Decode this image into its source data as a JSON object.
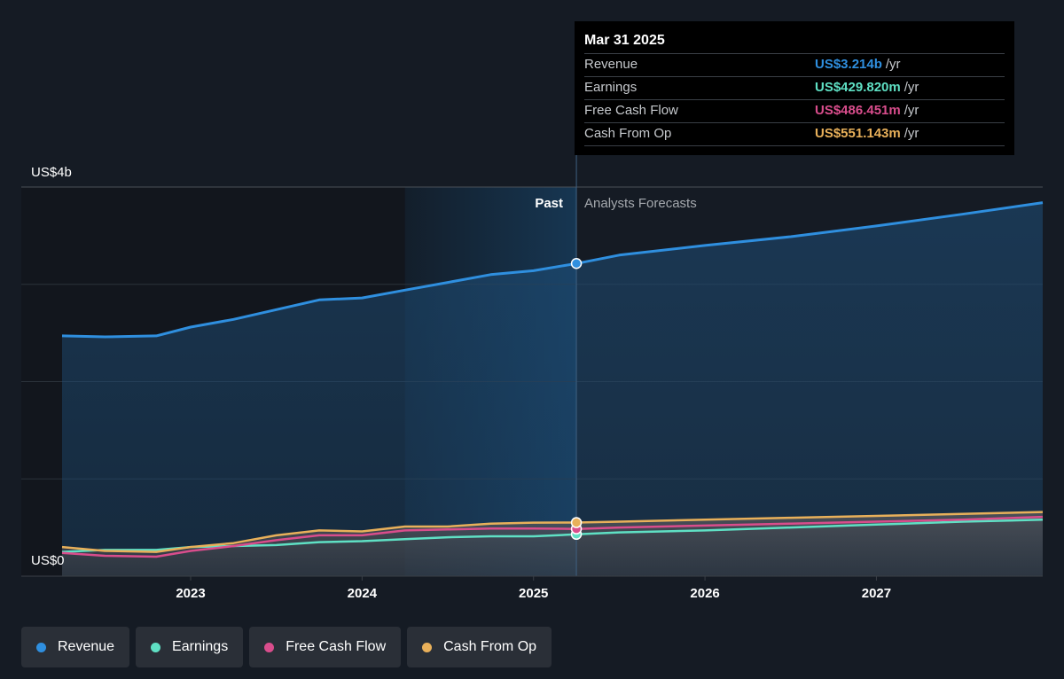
{
  "chart_data": {
    "type": "area",
    "y_axis": {
      "min": 0,
      "max": 4,
      "unit": "US$b",
      "top_label": "US$4b",
      "bottom_label": "US$0",
      "gridlines": [
        0,
        1,
        2,
        3,
        4
      ]
    },
    "x_axis": {
      "min": 2022.25,
      "max": 2027.97,
      "ticks": [
        "2023",
        "2024",
        "2025",
        "2026",
        "2027"
      ],
      "tick_values": [
        2023,
        2024,
        2025,
        2026,
        2027
      ]
    },
    "divider_x": 2025.25,
    "shade_start_x": 2024.25,
    "past_label": "Past",
    "forecast_label": "Analysts Forecasts",
    "series": [
      {
        "name": "Revenue",
        "key": "revenue",
        "color": "#2f8fdf",
        "points": [
          [
            2022.25,
            2.47
          ],
          [
            2022.5,
            2.46
          ],
          [
            2022.8,
            2.47
          ],
          [
            2023.0,
            2.56
          ],
          [
            2023.25,
            2.64
          ],
          [
            2023.5,
            2.74
          ],
          [
            2023.75,
            2.84
          ],
          [
            2024.0,
            2.86
          ],
          [
            2024.25,
            2.94
          ],
          [
            2024.5,
            3.02
          ],
          [
            2024.75,
            3.1
          ],
          [
            2025.0,
            3.14
          ],
          [
            2025.25,
            3.214
          ],
          [
            2025.5,
            3.3
          ],
          [
            2026.0,
            3.4
          ],
          [
            2026.5,
            3.49
          ],
          [
            2027.0,
            3.6
          ],
          [
            2027.5,
            3.72
          ],
          [
            2027.97,
            3.84
          ]
        ]
      },
      {
        "name": "Earnings",
        "key": "earnings",
        "color": "#5fe0c4",
        "points": [
          [
            2022.25,
            0.25
          ],
          [
            2022.5,
            0.27
          ],
          [
            2022.8,
            0.27
          ],
          [
            2023.0,
            0.3
          ],
          [
            2023.25,
            0.31
          ],
          [
            2023.5,
            0.32
          ],
          [
            2023.75,
            0.35
          ],
          [
            2024.0,
            0.36
          ],
          [
            2024.25,
            0.38
          ],
          [
            2024.5,
            0.4
          ],
          [
            2024.75,
            0.41
          ],
          [
            2025.0,
            0.41
          ],
          [
            2025.25,
            0.43
          ],
          [
            2025.5,
            0.45
          ],
          [
            2026.0,
            0.47
          ],
          [
            2026.5,
            0.5
          ],
          [
            2027.0,
            0.53
          ],
          [
            2027.5,
            0.56
          ],
          [
            2027.97,
            0.58
          ]
        ]
      },
      {
        "name": "Free Cash Flow",
        "key": "fcf",
        "color": "#d94d8c",
        "points": [
          [
            2022.25,
            0.24
          ],
          [
            2022.5,
            0.21
          ],
          [
            2022.8,
            0.2
          ],
          [
            2023.0,
            0.26
          ],
          [
            2023.25,
            0.31
          ],
          [
            2023.5,
            0.37
          ],
          [
            2023.75,
            0.42
          ],
          [
            2024.0,
            0.42
          ],
          [
            2024.25,
            0.47
          ],
          [
            2024.5,
            0.48
          ],
          [
            2024.75,
            0.49
          ],
          [
            2025.0,
            0.49
          ],
          [
            2025.25,
            0.486
          ],
          [
            2025.5,
            0.5
          ],
          [
            2026.0,
            0.52
          ],
          [
            2026.5,
            0.54
          ],
          [
            2027.0,
            0.56
          ],
          [
            2027.5,
            0.58
          ],
          [
            2027.97,
            0.61
          ]
        ]
      },
      {
        "name": "Cash From Op",
        "key": "cfo",
        "color": "#e8b05a",
        "points": [
          [
            2022.25,
            0.3
          ],
          [
            2022.5,
            0.26
          ],
          [
            2022.8,
            0.25
          ],
          [
            2023.0,
            0.3
          ],
          [
            2023.25,
            0.34
          ],
          [
            2023.5,
            0.42
          ],
          [
            2023.75,
            0.47
          ],
          [
            2024.0,
            0.46
          ],
          [
            2024.25,
            0.51
          ],
          [
            2024.5,
            0.51
          ],
          [
            2024.75,
            0.54
          ],
          [
            2025.0,
            0.55
          ],
          [
            2025.25,
            0.551
          ],
          [
            2025.5,
            0.56
          ],
          [
            2026.0,
            0.58
          ],
          [
            2026.5,
            0.6
          ],
          [
            2027.0,
            0.62
          ],
          [
            2027.5,
            0.64
          ],
          [
            2027.97,
            0.66
          ]
        ]
      }
    ],
    "tooltip": {
      "date": "Mar 31 2025",
      "rows": [
        {
          "label": "Revenue",
          "value": "US$3.214b",
          "unit": "/yr",
          "color": "#2f8fdf"
        },
        {
          "label": "Earnings",
          "value": "US$429.820m",
          "unit": "/yr",
          "color": "#5fe0c4"
        },
        {
          "label": "Free Cash Flow",
          "value": "US$486.451m",
          "unit": "/yr",
          "color": "#d94d8c"
        },
        {
          "label": "Cash From Op",
          "value": "US$551.143m",
          "unit": "/yr",
          "color": "#e8b05a"
        }
      ]
    }
  },
  "legend": [
    {
      "label": "Revenue",
      "color": "#2f8fdf"
    },
    {
      "label": "Earnings",
      "color": "#5fe0c4"
    },
    {
      "label": "Free Cash Flow",
      "color": "#d94d8c"
    },
    {
      "label": "Cash From Op",
      "color": "#e8b05a"
    }
  ]
}
